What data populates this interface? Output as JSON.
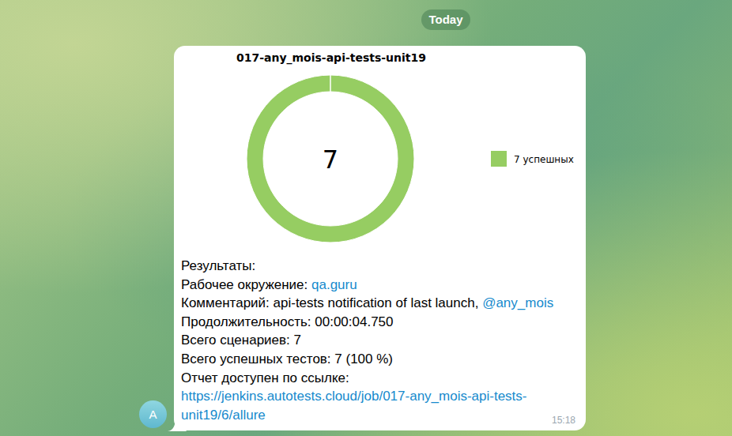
{
  "header": {
    "date": "Today"
  },
  "chart_data": {
    "type": "donut",
    "title": "017-any_mois-api-tests-unit19",
    "categories": [
      "7 успешных"
    ],
    "values": [
      7
    ],
    "colors": [
      "#96cd62"
    ],
    "annotations": [
      "7"
    ],
    "legend": "right"
  },
  "message": {
    "lines": [
      {
        "label": "Результаты:"
      },
      {
        "label": "Рабочее окружение:",
        "value": "qa.guru",
        "link": true
      },
      {
        "label": "Комментарий:",
        "value": "api-tests notification of last launch,",
        "mention": "@any_mois"
      },
      {
        "label": "Продолжительность:",
        "value": "00:00:04.750"
      },
      {
        "label": "Всего сценариев:",
        "value": "7"
      },
      {
        "label": "Всего успешных тестов:",
        "value": "7 (100 %)"
      },
      {
        "label": "Отчет доступен по ссылке:",
        "value": "https://jenkins.autotests.cloud/job/017-any_mois-api-tests-unit19/6/allure",
        "link": true
      }
    ],
    "time": "15:18",
    "sender": "A"
  }
}
